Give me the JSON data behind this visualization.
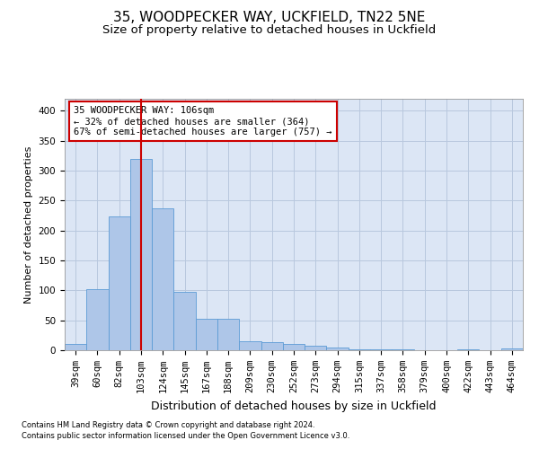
{
  "title1": "35, WOODPECKER WAY, UCKFIELD, TN22 5NE",
  "title2": "Size of property relative to detached houses in Uckfield",
  "xlabel": "Distribution of detached houses by size in Uckfield",
  "ylabel": "Number of detached properties",
  "footnote1": "Contains HM Land Registry data © Crown copyright and database right 2024.",
  "footnote2": "Contains public sector information licensed under the Open Government Licence v3.0.",
  "categories": [
    "39sqm",
    "60sqm",
    "82sqm",
    "103sqm",
    "124sqm",
    "145sqm",
    "167sqm",
    "188sqm",
    "209sqm",
    "230sqm",
    "252sqm",
    "273sqm",
    "294sqm",
    "315sqm",
    "337sqm",
    "358sqm",
    "379sqm",
    "400sqm",
    "422sqm",
    "443sqm",
    "464sqm"
  ],
  "values": [
    10,
    102,
    224,
    320,
    237,
    97,
    53,
    52,
    15,
    13,
    10,
    7,
    4,
    2,
    1,
    2,
    0,
    0,
    2,
    0,
    3
  ],
  "bar_color": "#aec6e8",
  "bar_edge_color": "#5b9bd5",
  "background_color": "#ffffff",
  "plot_bg_color": "#dce6f5",
  "grid_color": "#b8c8de",
  "vline_x": 3,
  "vline_color": "#cc0000",
  "annotation_text": "35 WOODPECKER WAY: 106sqm\n← 32% of detached houses are smaller (364)\n67% of semi-detached houses are larger (757) →",
  "annotation_box_color": "#ffffff",
  "annotation_box_edge_color": "#cc0000",
  "ylim": [
    0,
    420
  ],
  "yticks": [
    0,
    50,
    100,
    150,
    200,
    250,
    300,
    350,
    400
  ],
  "title1_fontsize": 11,
  "title2_fontsize": 9.5,
  "xlabel_fontsize": 9,
  "ylabel_fontsize": 8,
  "tick_fontsize": 7.5,
  "annotation_fontsize": 7.5,
  "footnote_fontsize": 6
}
